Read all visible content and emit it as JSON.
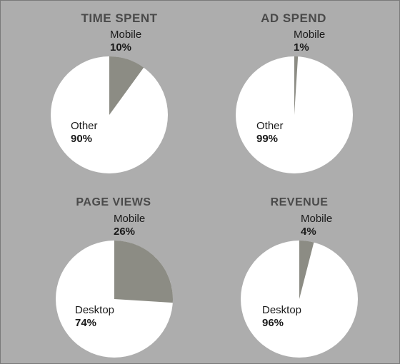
{
  "colors": {
    "background": "#adadad",
    "pie_fill": "#ffffff",
    "mobile_slice": "#8c8c84",
    "title_text": "#4a4a4a",
    "label_text": "#1a1a1a"
  },
  "chart_data": [
    {
      "type": "pie",
      "title": "TIME SPENT",
      "slices": [
        {
          "label": "Mobile",
          "value": 10,
          "value_label": "10%"
        },
        {
          "label": "Other",
          "value": 90,
          "value_label": "90%"
        }
      ]
    },
    {
      "type": "pie",
      "title": "AD SPEND",
      "slices": [
        {
          "label": "Mobile",
          "value": 1,
          "value_label": "1%"
        },
        {
          "label": "Other",
          "value": 99,
          "value_label": "99%"
        }
      ]
    },
    {
      "type": "pie",
      "title": "PAGE VIEWS",
      "slices": [
        {
          "label": "Mobile",
          "value": 26,
          "value_label": "26%"
        },
        {
          "label": "Desktop",
          "value": 74,
          "value_label": "74%"
        }
      ]
    },
    {
      "type": "pie",
      "title": "REVENUE",
      "slices": [
        {
          "label": "Mobile",
          "value": 4,
          "value_label": "4%"
        },
        {
          "label": "Desktop",
          "value": 96,
          "value_label": "96%"
        }
      ]
    }
  ]
}
